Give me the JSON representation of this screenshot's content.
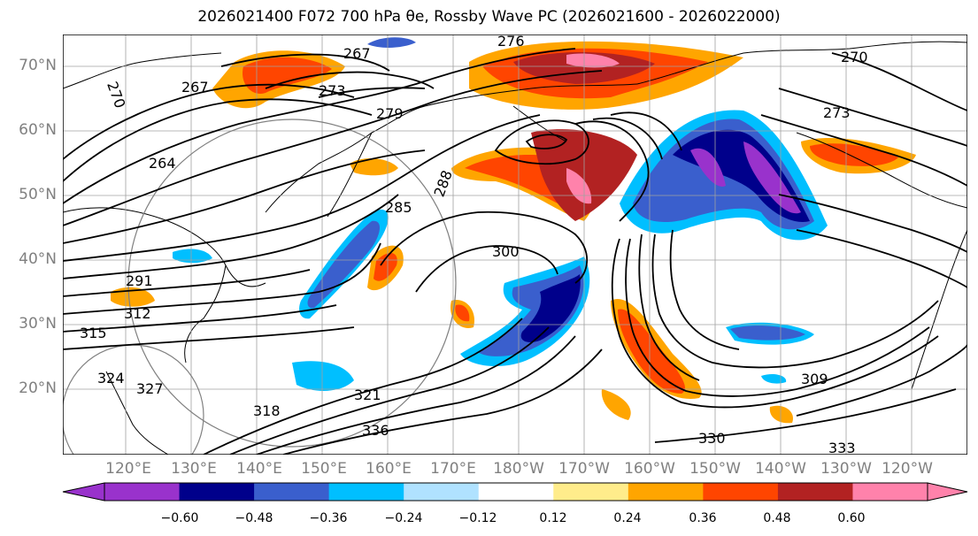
{
  "title": "2026021400 F072 700 hPa θe, Rossby Wave PC (2026021600 - 2026022000)",
  "lat_labels": [
    "70°N",
    "60°N",
    "50°N",
    "40°N",
    "30°N",
    "20°N"
  ],
  "lon_labels": [
    "120°E",
    "130°E",
    "140°E",
    "150°E",
    "160°E",
    "170°E",
    "180°W",
    "170°W",
    "160°W",
    "150°W",
    "140°W",
    "130°W",
    "120°W"
  ],
  "colorbar": {
    "colors": [
      "#9932cc",
      "#00008b",
      "#3a5fcd",
      "#00bfff",
      "#b0e2ff",
      "#ffffff",
      "#ffec8b",
      "#ffa500",
      "#ff4500",
      "#b22222",
      "#ff82ab"
    ],
    "tick_labels": [
      "−0.60",
      "−0.48",
      "−0.36",
      "−0.24",
      "−0.12",
      "0.12",
      "0.24",
      "0.36",
      "0.48",
      "0.60"
    ]
  },
  "contour_labels": [
    "267",
    "270",
    "273",
    "276",
    "279",
    "264",
    "267",
    "270",
    "273",
    "285",
    "288",
    "291",
    "300",
    "309",
    "312",
    "315",
    "318",
    "321",
    "324",
    "327",
    "330",
    "333",
    "336"
  ],
  "palette": {
    "land_outline": "#000000",
    "grid": "#a0a0a0",
    "contour": "#000000"
  }
}
